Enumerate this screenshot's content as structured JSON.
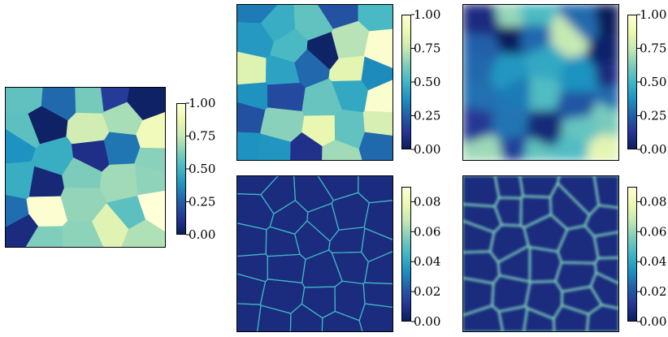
{
  "chart_data": [
    {
      "type": "heatmap",
      "panel": "left",
      "title": "",
      "xlabel": "",
      "ylabel": "",
      "content": "voronoi grain field (piecewise-constant cells)",
      "colormap": "YlGnBu_r",
      "colorbar": {
        "range": [
          0.0,
          1.0
        ],
        "ticks": [
          "0.00",
          "0.25",
          "0.50",
          "0.75",
          "1.00"
        ]
      }
    },
    {
      "type": "heatmap",
      "panel": "top-middle",
      "title": "",
      "xlabel": "",
      "ylabel": "",
      "content": "voronoi grain field (piecewise-constant cells)",
      "colormap": "YlGnBu_r",
      "colorbar": {
        "range": [
          0.0,
          1.0
        ],
        "ticks": [
          "0.00",
          "0.25",
          "0.50",
          "0.75",
          "1.00"
        ]
      }
    },
    {
      "type": "heatmap",
      "panel": "top-right",
      "title": "",
      "xlabel": "",
      "ylabel": "",
      "content": "smoothed grain field",
      "colormap": "YlGnBu_r",
      "colorbar": {
        "range": [
          0.0,
          1.0
        ],
        "ticks": [
          "0.00",
          "0.25",
          "0.50",
          "0.75",
          "1.00"
        ]
      }
    },
    {
      "type": "heatmap",
      "panel": "bottom-middle",
      "title": "",
      "xlabel": "",
      "ylabel": "",
      "content": "grain boundary error map (thin bright edges)",
      "colormap": "YlGnBu_r",
      "colorbar": {
        "range": [
          0.0,
          0.09
        ],
        "ticks": [
          "0.00",
          "0.02",
          "0.04",
          "0.06",
          "0.08"
        ]
      }
    },
    {
      "type": "heatmap",
      "panel": "bottom-right",
      "title": "",
      "xlabel": "",
      "ylabel": "",
      "content": "grain boundary error map (blurred bright edges)",
      "colormap": "YlGnBu_r",
      "colorbar": {
        "range": [
          0.0,
          0.09
        ],
        "ticks": [
          "0.00",
          "0.02",
          "0.04",
          "0.06",
          "0.08"
        ]
      }
    }
  ]
}
